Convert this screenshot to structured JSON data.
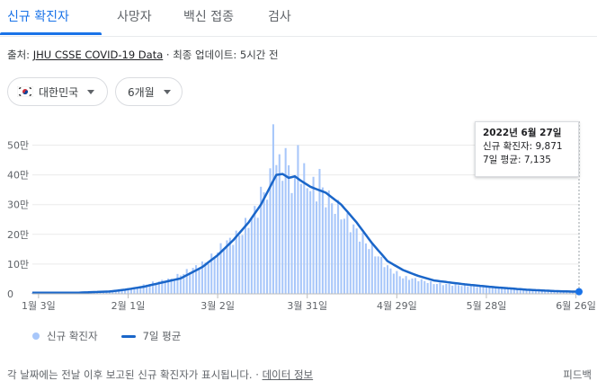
{
  "tabs": [
    {
      "label": "신규 확진자",
      "active": true
    },
    {
      "label": "사망자",
      "active": false
    },
    {
      "label": "백신 접종",
      "active": false
    },
    {
      "label": "검사",
      "active": false
    }
  ],
  "source": {
    "prefix": "출처: ",
    "link": "JHU CSSE COVID-19 Data",
    "suffix": " · 최종 업데이트: 5시간 전"
  },
  "filters": {
    "country": "대한민국",
    "country_icon": "south-korea-flag-icon",
    "period": "6개월"
  },
  "tooltip": {
    "date": "2022년 6월 27일",
    "new_cases": "신규 확진자: 9,871",
    "avg7": "7일 평균: 7,135"
  },
  "legend": {
    "bars": "신규 확진자",
    "line": "7일 평균"
  },
  "colors": {
    "bar": "#a8c7fa",
    "line": "#1a66c9",
    "accent": "#1a73e8"
  },
  "footer": {
    "note": "각 날짜에는 전날 이후 보고된 신규 확진자가 표시됩니다. · ",
    "link": "데이터 정보",
    "feedback": "피드백"
  },
  "chart_data": {
    "type": "bar",
    "x_start": "2022-01-01",
    "x_end": "2022-06-27",
    "x_tick_labels": [
      "1월 3일",
      "2월 1일",
      "3월 2일",
      "3월 31일",
      "4월 29일",
      "5월 28일",
      "6월 26일"
    ],
    "x_tick_dates": [
      "2022-01-03",
      "2022-02-01",
      "2022-03-02",
      "2022-03-31",
      "2022-04-29",
      "2022-05-28",
      "2022-06-26"
    ],
    "y_tick_labels": [
      "0",
      "10만",
      "20만",
      "30만",
      "40만",
      "50만"
    ],
    "y_tick_values": [
      0,
      100000,
      200000,
      300000,
      400000,
      500000
    ],
    "ylim": [
      0,
      580000
    ],
    "grid": true,
    "legend_position": "bottom-left",
    "series": [
      {
        "name": "신규 확진자",
        "type": "bar",
        "keyframes_day_value": [
          [
            0,
            4000
          ],
          [
            10,
            3500
          ],
          [
            20,
            6000
          ],
          [
            27,
            13000
          ],
          [
            33,
            20000
          ],
          [
            38,
            35000
          ],
          [
            45,
            50000
          ],
          [
            52,
            85000
          ],
          [
            57,
            110000
          ],
          [
            62,
            165000
          ],
          [
            67,
            200000
          ],
          [
            72,
            270000
          ],
          [
            75,
            330000
          ],
          [
            77,
            380000
          ],
          [
            79,
            460000
          ],
          [
            80,
            420000
          ],
          [
            83,
            400000
          ],
          [
            85,
            370000
          ],
          [
            87,
            410000
          ],
          [
            90,
            360000
          ],
          [
            95,
            330000
          ],
          [
            100,
            270000
          ],
          [
            105,
            210000
          ],
          [
            110,
            150000
          ],
          [
            115,
            90000
          ],
          [
            120,
            55000
          ],
          [
            125,
            48000
          ],
          [
            130,
            35000
          ],
          [
            140,
            28000
          ],
          [
            150,
            22000
          ],
          [
            160,
            13000
          ],
          [
            170,
            9000
          ],
          [
            177,
            9871
          ]
        ],
        "spikes_day_value": [
          [
            78,
            570000
          ],
          [
            82,
            490000
          ],
          [
            86,
            500000
          ],
          [
            93,
            420000
          ],
          [
            81,
            380000
          ],
          [
            74,
            360000
          ]
        ]
      },
      {
        "name": "7일 평균",
        "type": "line",
        "keyframes_day_value": [
          [
            0,
            3500
          ],
          [
            15,
            4000
          ],
          [
            25,
            8000
          ],
          [
            30,
            14000
          ],
          [
            36,
            24000
          ],
          [
            42,
            38000
          ],
          [
            48,
            52000
          ],
          [
            55,
            90000
          ],
          [
            60,
            130000
          ],
          [
            65,
            180000
          ],
          [
            70,
            240000
          ],
          [
            74,
            300000
          ],
          [
            77,
            360000
          ],
          [
            79,
            400000
          ],
          [
            81,
            403000
          ],
          [
            83,
            390000
          ],
          [
            85,
            395000
          ],
          [
            87,
            380000
          ],
          [
            90,
            360000
          ],
          [
            95,
            340000
          ],
          [
            100,
            300000
          ],
          [
            105,
            240000
          ],
          [
            110,
            170000
          ],
          [
            115,
            110000
          ],
          [
            120,
            80000
          ],
          [
            125,
            60000
          ],
          [
            130,
            45000
          ],
          [
            140,
            32000
          ],
          [
            150,
            22000
          ],
          [
            160,
            14000
          ],
          [
            170,
            9000
          ],
          [
            177,
            7135
          ]
        ]
      }
    ]
  }
}
